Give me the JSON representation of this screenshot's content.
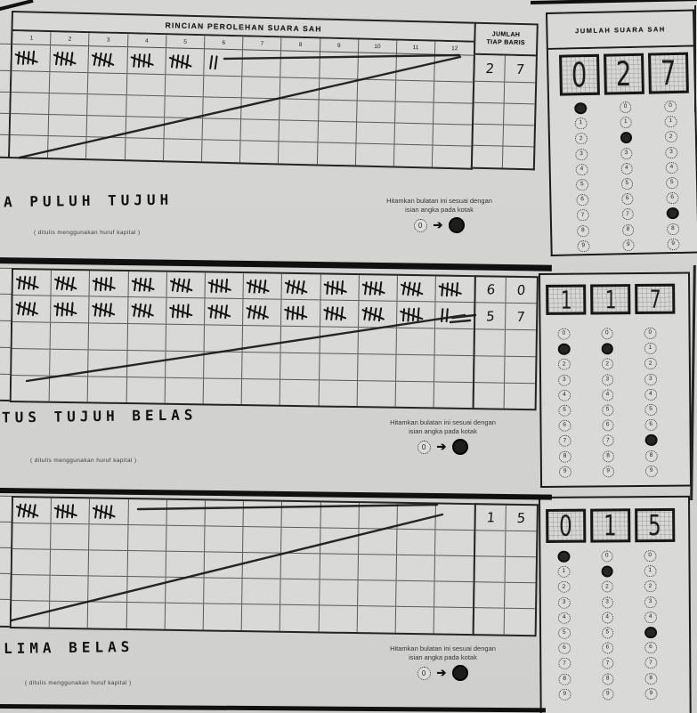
{
  "form": {
    "title": "RINCIAN PEROLEHAN SUARA SAH",
    "row_total_header_line1": "JUMLAH",
    "row_total_header_line2": "TIAP BARIS",
    "grand_total_header": "JUMLAH SUARA SAH",
    "column_numbers": [
      "1",
      "2",
      "3",
      "4",
      "5",
      "6",
      "7",
      "8",
      "9",
      "10",
      "11",
      "12"
    ],
    "bubble_digits": [
      "0",
      "1",
      "2",
      "3",
      "4",
      "5",
      "6",
      "7",
      "8",
      "9"
    ],
    "note": {
      "line1": "Hitamkan bulatan ini sesuai dengan",
      "line2": "isian angka pada kotak",
      "example_digit": "0"
    },
    "caption_small": "( ditulis menggunakan huruf kapital )",
    "sections": [
      {
        "name": "first-count",
        "words": "A PULUH TUJUH",
        "total_value": 27,
        "tally_rows": [
          {
            "tally_cells": [
              5,
              5,
              5,
              5,
              5,
              2,
              0,
              0,
              0,
              0,
              0,
              0
            ],
            "row_total": [
              "2",
              "7"
            ]
          }
        ],
        "total_digits": [
          "0",
          "2",
          "7"
        ],
        "filled_bubbles": [
          0,
          2,
          7
        ]
      },
      {
        "name": "second-count",
        "words": "TUS TUJUH BELAS",
        "total_value": 117,
        "tally_rows": [
          {
            "tally_cells": [
              5,
              5,
              5,
              5,
              5,
              5,
              5,
              5,
              5,
              5,
              5,
              5
            ],
            "row_total": [
              "6",
              "0"
            ]
          },
          {
            "tally_cells": [
              5,
              5,
              5,
              5,
              5,
              5,
              5,
              5,
              5,
              5,
              5,
              2
            ],
            "row_total": [
              "5",
              "7"
            ]
          }
        ],
        "total_digits": [
          "1",
          "1",
          "7"
        ],
        "filled_bubbles": [
          1,
          1,
          7
        ]
      },
      {
        "name": "third-count",
        "words": "LIMA BELAS",
        "total_value": 15,
        "tally_rows": [
          {
            "tally_cells": [
              5,
              5,
              5,
              0,
              0,
              0,
              0,
              0,
              0,
              0,
              0,
              0
            ],
            "row_total": [
              "1",
              "5"
            ]
          }
        ],
        "total_digits": [
          "0",
          "1",
          "5"
        ],
        "filled_bubbles": [
          0,
          1,
          5
        ]
      }
    ]
  }
}
